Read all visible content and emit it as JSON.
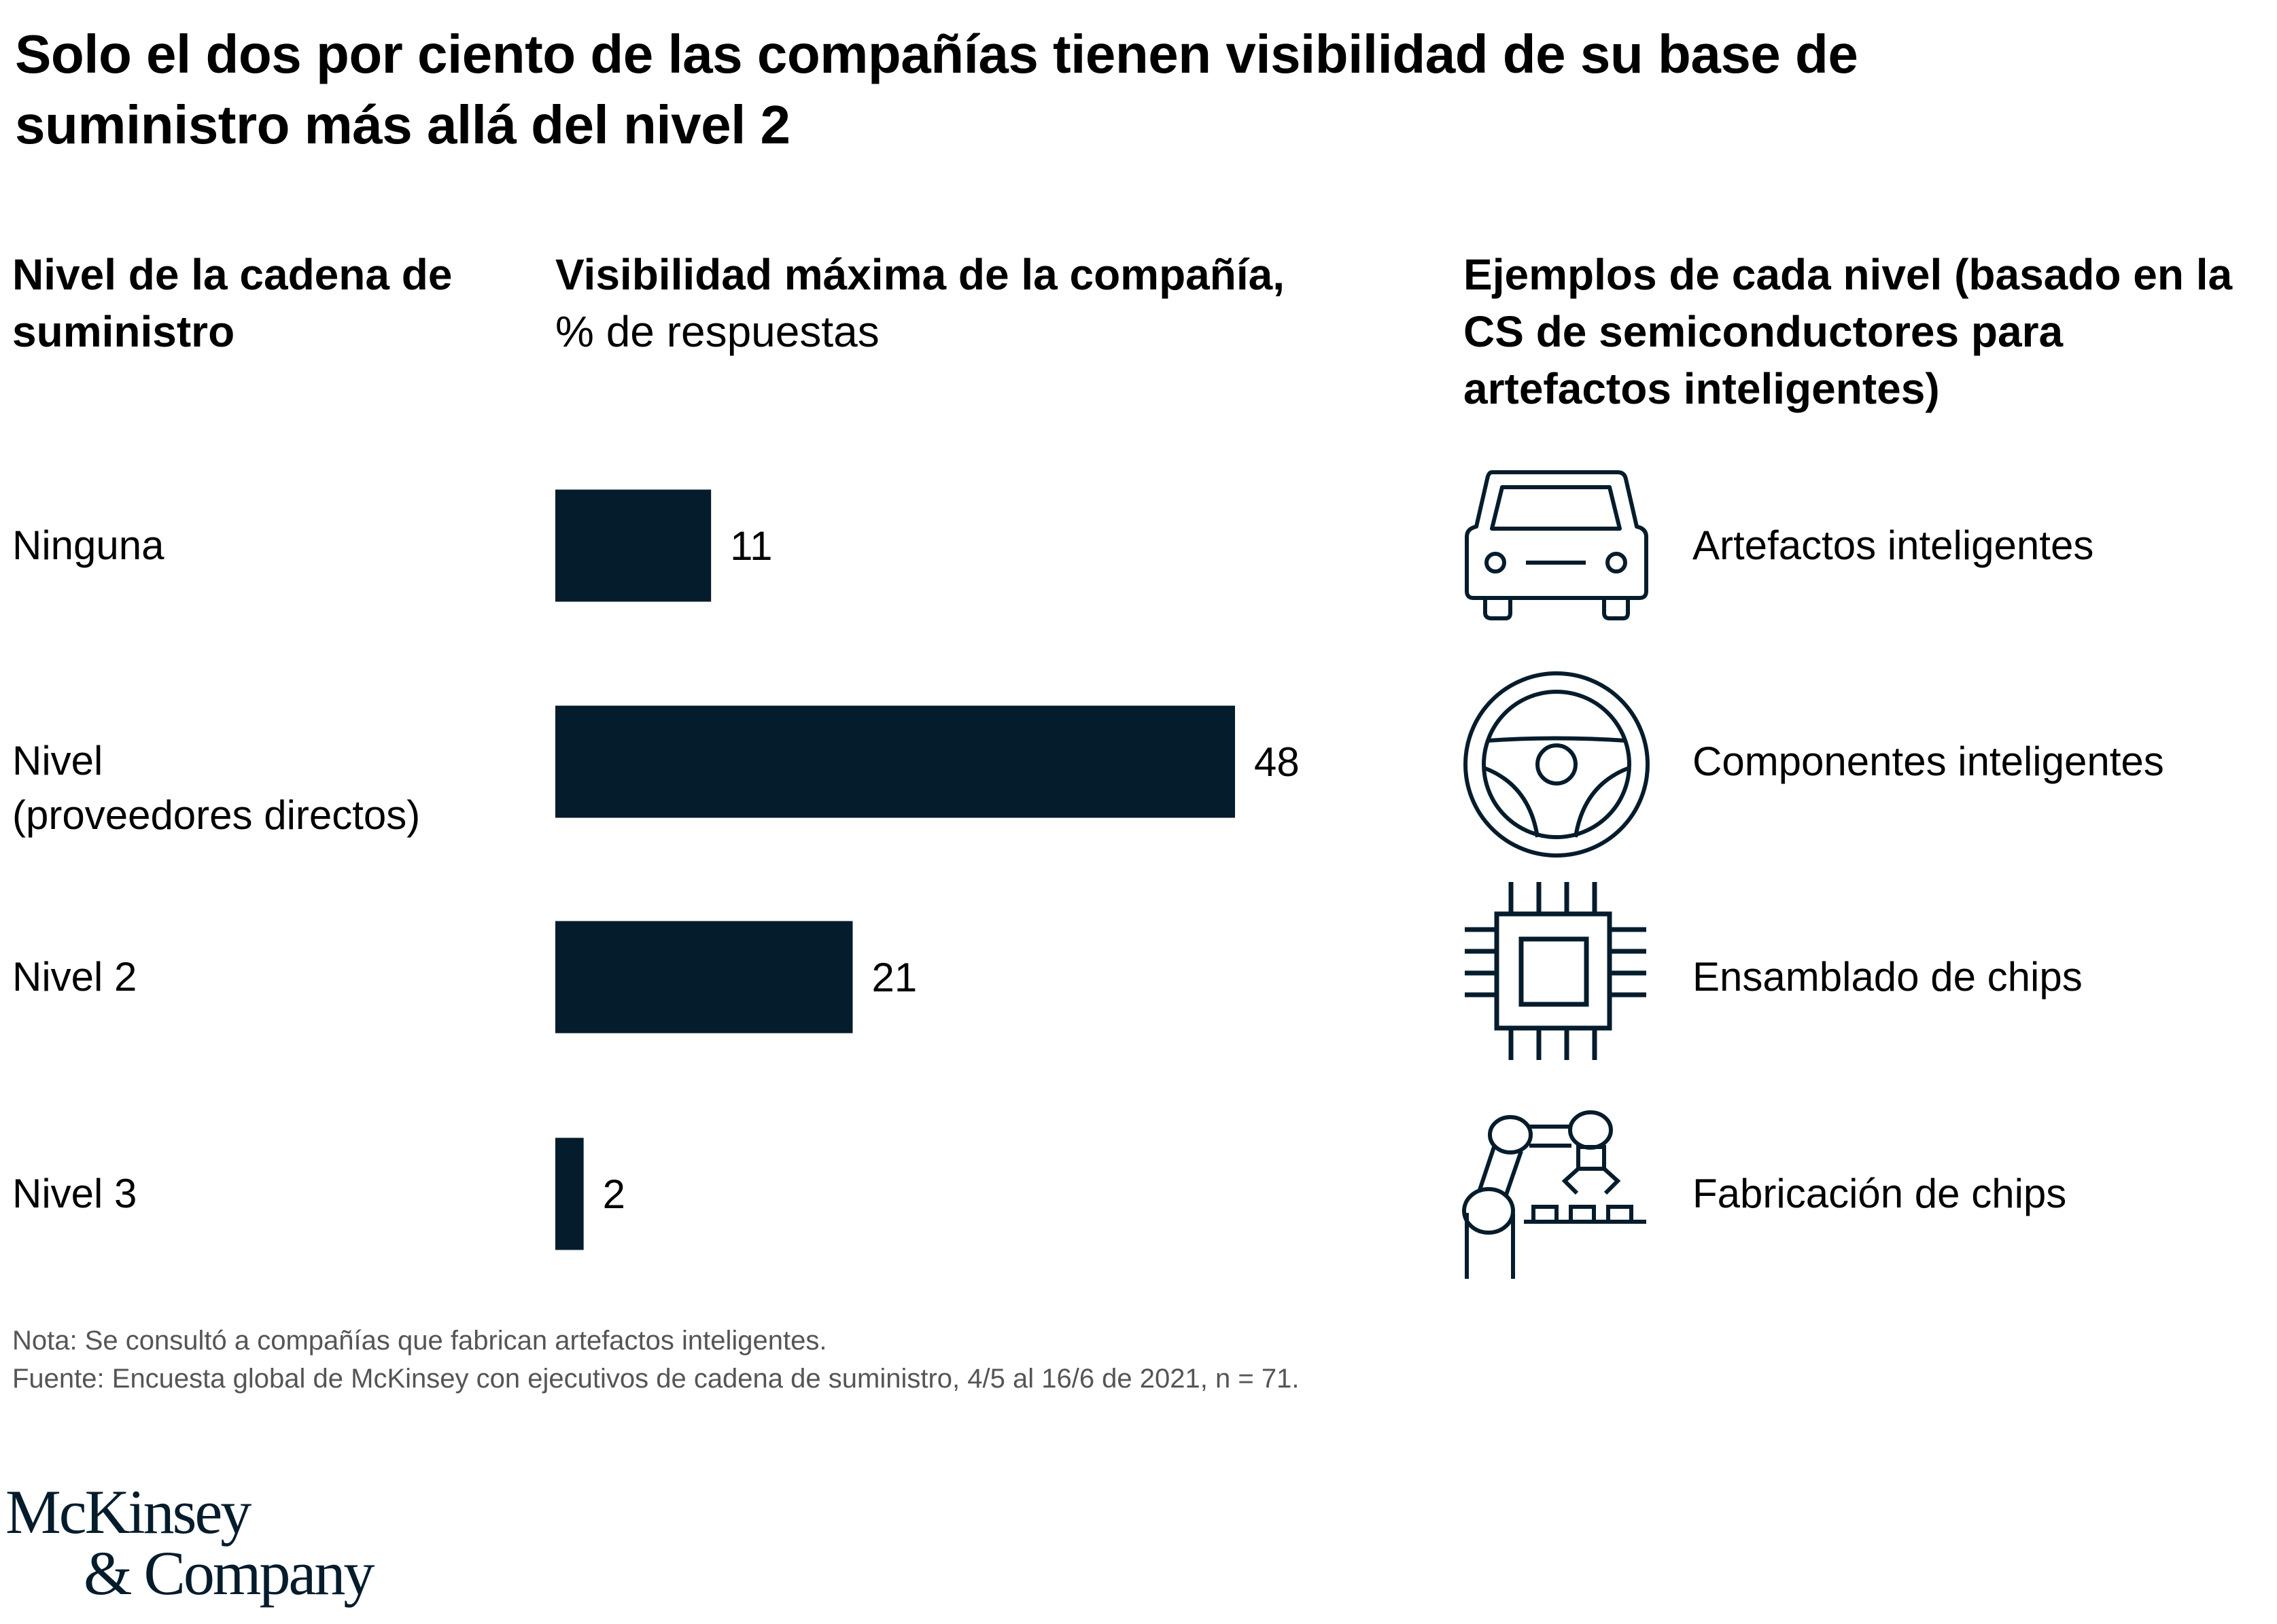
{
  "title": "Solo el dos por ciento de las compañías tienen visibilidad de su base de suministro más allá del nivel 2",
  "columns": {
    "levels_header": "Nivel de la cadena de suministro",
    "visibility_header_bold": "Visibilidad máxima de la compañía,",
    "visibility_header_unit": "% de respuestas",
    "examples_header": "Ejemplos de cada nivel (basado en la CS de semiconductores para artefactos inteligentes)"
  },
  "rows": [
    {
      "label_line1": "Ninguna",
      "label_line2": "",
      "value": 11,
      "value_label": "11",
      "example": "Artefactos inteligentes",
      "icon": "car-icon"
    },
    {
      "label_line1": "Nivel",
      "label_line2": "(proveedores directos)",
      "value": 48,
      "value_label": "48",
      "example": "Componentes inteligentes",
      "icon": "steering-wheel-icon"
    },
    {
      "label_line1": "Nivel 2",
      "label_line2": "",
      "value": 21,
      "value_label": "21",
      "example": "Ensamblado de chips",
      "icon": "chip-icon"
    },
    {
      "label_line1": "Nivel 3",
      "label_line2": "",
      "value": 2,
      "value_label": "2",
      "example": "Fabricación de chips",
      "icon": "robot-arm-icon"
    }
  ],
  "notes": {
    "note": "Nota: Se consultó a compañías que fabrican artefactos inteligentes.",
    "source": "Fuente: Encuesta global de McKinsey con ejecutivos de cadena de suministro, 4/5 al 16/6 de 2021, n = 71."
  },
  "logo": {
    "line1": "McKinsey",
    "line2": "& Company"
  },
  "colors": {
    "bar": "#051c2c",
    "icon_stroke": "#051c2c",
    "text": "#000000",
    "note_text": "#555555"
  },
  "chart_data": {
    "type": "bar",
    "orientation": "horizontal",
    "title": "Solo el dos por ciento de las compañías tienen visibilidad de su base de suministro más allá del nivel 2",
    "categories": [
      "Ninguna",
      "Nivel (proveedores directos)",
      "Nivel 2",
      "Nivel 3"
    ],
    "values": [
      11,
      48,
      21,
      2
    ],
    "xlabel": "Visibilidad máxima de la compañía, % de respuestas",
    "ylabel": "Nivel de la cadena de suministro",
    "xlim": [
      0,
      48
    ],
    "grid": false,
    "legend": "none",
    "data_labels": true
  }
}
